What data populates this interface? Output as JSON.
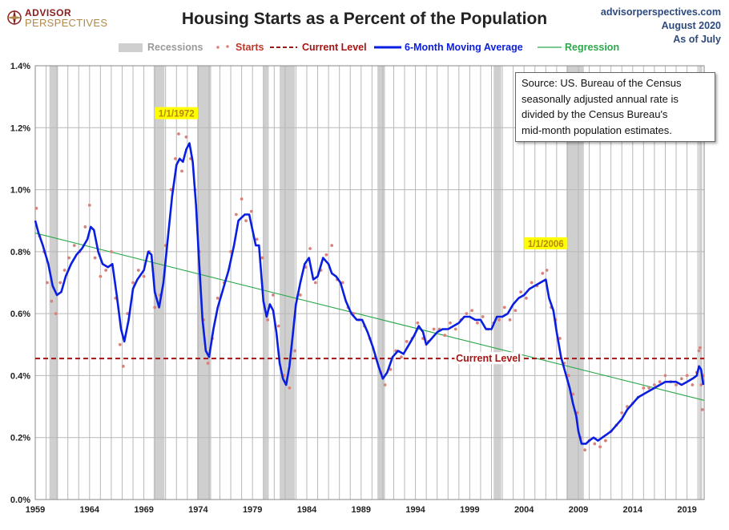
{
  "header": {
    "logo_top": "ADVISOR",
    "logo_bottom": "PERSPECTIVES",
    "title": "Housing Starts as a Percent of the Population",
    "site": "advisorperspectives.com",
    "date": "August 2020",
    "asof": "As of July"
  },
  "legend": {
    "recessions": "Recessions",
    "starts": "Starts",
    "current": "Current Level",
    "ma": "6-Month Moving Average",
    "regression": "Regression"
  },
  "source_note": [
    "Source: US. Bureau of the Census",
    "seasonally adjusted annual rate is",
    "divided by the Census Bureau's",
    "mid-month  population estimates."
  ],
  "colors": {
    "starts": "#d9827a",
    "ma": "#0a1ee0",
    "current": "#a31515",
    "regression": "#2aa84a",
    "recession": "#cfcfcf",
    "callout_bg": "#ffff00",
    "callout_text": "#b8860b"
  },
  "chart_data": {
    "type": "line",
    "title": "Housing Starts as a Percent of the Population",
    "xlim": [
      1959.0,
      2020.58
    ],
    "ylim": [
      0,
      1.4
    ],
    "y_ticks": [
      "0.0%",
      "0.2%",
      "0.4%",
      "0.6%",
      "0.8%",
      "1.0%",
      "1.2%",
      "1.4%"
    ],
    "y_tick_values": [
      0,
      0.2,
      0.4,
      0.6,
      0.8,
      1.0,
      1.2,
      1.4
    ],
    "x_ticks": [
      "1959",
      "1964",
      "1969",
      "1974",
      "1979",
      "1984",
      "1989",
      "1994",
      "1999",
      "2004",
      "2009",
      "2014",
      "2019"
    ],
    "x_tick_values": [
      1959,
      1964,
      1969,
      1974,
      1979,
      1984,
      1989,
      1994,
      1999,
      2004,
      2009,
      2014,
      2019
    ],
    "grid": "vertical-yearly, horizontal-major",
    "current_level": 0.455,
    "current_label": "Current Level",
    "regression": {
      "start": [
        1959.0,
        0.86
      ],
      "end": [
        2020.58,
        0.32
      ]
    },
    "recessions": [
      [
        1960.3,
        1961.1
      ],
      [
        1969.9,
        1970.9
      ],
      [
        1973.9,
        1975.2
      ],
      [
        1980.0,
        1980.5
      ],
      [
        1981.5,
        1982.9
      ],
      [
        1990.5,
        1991.2
      ],
      [
        2001.2,
        2001.9
      ],
      [
        2007.9,
        2009.5
      ],
      [
        2020.1,
        2020.4
      ]
    ],
    "annotations": [
      {
        "label": "1/1/1972",
        "x": 1972.0,
        "y": 1.15
      },
      {
        "label": "1/1/2006",
        "x": 2006.0,
        "y": 0.73
      }
    ],
    "series": [
      {
        "name": "6-Month Moving Average",
        "x": [
          1959.0,
          1959.3,
          1959.7,
          1960.2,
          1960.6,
          1961.0,
          1961.4,
          1961.8,
          1962.3,
          1962.8,
          1963.3,
          1963.8,
          1964.1,
          1964.4,
          1964.8,
          1965.2,
          1965.7,
          1966.1,
          1966.5,
          1966.9,
          1967.2,
          1967.6,
          1968.0,
          1968.4,
          1968.8,
          1969.0,
          1969.4,
          1969.7,
          1970.0,
          1970.4,
          1970.8,
          1971.2,
          1971.6,
          1972.0,
          1972.3,
          1972.6,
          1972.9,
          1973.2,
          1973.5,
          1973.8,
          1974.1,
          1974.4,
          1974.7,
          1975.0,
          1975.4,
          1975.8,
          1976.3,
          1976.8,
          1977.3,
          1977.7,
          1978.0,
          1978.3,
          1978.7,
          1979.0,
          1979.3,
          1979.6,
          1980.0,
          1980.3,
          1980.6,
          1980.9,
          1981.2,
          1981.5,
          1981.8,
          1982.1,
          1982.4,
          1982.7,
          1983.0,
          1983.4,
          1983.8,
          1984.2,
          1984.6,
          1985.0,
          1985.5,
          1986.0,
          1986.3,
          1986.7,
          1987.1,
          1987.6,
          1988.1,
          1988.6,
          1989.1,
          1989.6,
          1990.1,
          1990.6,
          1991.0,
          1991.4,
          1991.9,
          1992.4,
          1992.9,
          1993.4,
          1993.9,
          1994.3,
          1994.7,
          1995.0,
          1995.5,
          1996.0,
          1996.5,
          1997.0,
          1997.5,
          1998.0,
          1998.5,
          1999.0,
          1999.5,
          2000.0,
          2000.5,
          2001.0,
          2001.5,
          2002.0,
          2002.5,
          2003.0,
          2003.5,
          2004.0,
          2004.5,
          2005.0,
          2005.5,
          2006.0,
          2006.3,
          2006.7,
          2007.0,
          2007.4,
          2007.8,
          2008.2,
          2008.5,
          2008.8,
          2009.0,
          2009.3,
          2009.7,
          2010.0,
          2010.4,
          2010.8,
          2011.2,
          2011.6,
          2012.0,
          2012.5,
          2013.0,
          2013.5,
          2014.0,
          2014.5,
          2015.0,
          2015.5,
          2016.0,
          2016.5,
          2017.0,
          2017.5,
          2018.0,
          2018.5,
          2019.0,
          2019.5,
          2019.9,
          2020.1,
          2020.3,
          2020.5
        ],
        "values": [
          0.9,
          0.86,
          0.82,
          0.76,
          0.69,
          0.66,
          0.67,
          0.72,
          0.76,
          0.79,
          0.81,
          0.84,
          0.88,
          0.87,
          0.8,
          0.76,
          0.75,
          0.76,
          0.66,
          0.55,
          0.51,
          0.58,
          0.68,
          0.71,
          0.73,
          0.74,
          0.8,
          0.79,
          0.67,
          0.62,
          0.7,
          0.84,
          0.98,
          1.08,
          1.1,
          1.09,
          1.13,
          1.15,
          1.09,
          0.95,
          0.76,
          0.58,
          0.48,
          0.46,
          0.55,
          0.62,
          0.68,
          0.74,
          0.82,
          0.9,
          0.91,
          0.92,
          0.92,
          0.87,
          0.82,
          0.82,
          0.64,
          0.59,
          0.63,
          0.61,
          0.54,
          0.44,
          0.39,
          0.37,
          0.43,
          0.53,
          0.63,
          0.7,
          0.76,
          0.78,
          0.71,
          0.72,
          0.78,
          0.76,
          0.73,
          0.72,
          0.7,
          0.64,
          0.6,
          0.58,
          0.58,
          0.54,
          0.49,
          0.43,
          0.39,
          0.41,
          0.46,
          0.48,
          0.47,
          0.5,
          0.53,
          0.56,
          0.54,
          0.5,
          0.52,
          0.54,
          0.55,
          0.55,
          0.56,
          0.57,
          0.59,
          0.59,
          0.58,
          0.58,
          0.55,
          0.55,
          0.59,
          0.59,
          0.6,
          0.63,
          0.65,
          0.66,
          0.68,
          0.69,
          0.7,
          0.71,
          0.65,
          0.61,
          0.54,
          0.46,
          0.41,
          0.36,
          0.31,
          0.27,
          0.22,
          0.18,
          0.18,
          0.19,
          0.2,
          0.19,
          0.2,
          0.21,
          0.22,
          0.24,
          0.26,
          0.29,
          0.31,
          0.33,
          0.34,
          0.35,
          0.36,
          0.37,
          0.38,
          0.38,
          0.38,
          0.37,
          0.38,
          0.39,
          0.4,
          0.43,
          0.42,
          0.37
        ]
      },
      {
        "name": "Starts",
        "x": [
          1959.1,
          1959.4,
          1959.8,
          1960.1,
          1960.5,
          1960.9,
          1961.3,
          1961.7,
          1962.1,
          1962.6,
          1963.1,
          1963.6,
          1964.0,
          1964.5,
          1965.0,
          1965.5,
          1966.0,
          1966.4,
          1966.8,
          1967.1,
          1967.5,
          1968.0,
          1968.5,
          1969.0,
          1969.5,
          1970.0,
          1970.5,
          1971.0,
          1971.5,
          1971.9,
          1972.2,
          1972.5,
          1972.9,
          1973.3,
          1973.7,
          1974.1,
          1974.5,
          1974.9,
          1975.3,
          1975.8,
          1976.4,
          1977.0,
          1977.5,
          1978.0,
          1978.4,
          1978.9,
          1979.4,
          1979.9,
          1980.4,
          1980.9,
          1981.4,
          1981.9,
          1982.4,
          1982.9,
          1983.4,
          1983.9,
          1984.3,
          1984.8,
          1985.3,
          1985.8,
          1986.3,
          1986.8,
          1987.3,
          1987.8,
          1988.3,
          1988.8,
          1989.3,
          1989.8,
          1990.3,
          1990.8,
          1991.2,
          1991.7,
          1992.2,
          1992.7,
          1993.2,
          1993.7,
          1994.2,
          1994.7,
          1995.2,
          1995.7,
          1996.2,
          1996.7,
          1997.2,
          1997.7,
          1998.2,
          1998.7,
          1999.2,
          1999.7,
          2000.2,
          2000.7,
          2001.2,
          2001.7,
          2002.2,
          2002.7,
          2003.2,
          2003.7,
          2004.2,
          2004.7,
          2005.2,
          2005.7,
          2006.1,
          2006.5,
          2006.9,
          2007.3,
          2007.7,
          2008.1,
          2008.5,
          2008.9,
          2009.2,
          2009.6,
          2010.0,
          2010.5,
          2011.0,
          2011.5,
          2012.0,
          2012.5,
          2013.0,
          2013.5,
          2014.0,
          2014.5,
          2015.0,
          2015.5,
          2016.0,
          2016.5,
          2017.0,
          2017.5,
          2018.0,
          2018.5,
          2019.0,
          2019.5,
          2019.9,
          2020.1,
          2020.2,
          2020.3,
          2020.4,
          2020.5
        ],
        "values": [
          0.94,
          0.85,
          0.8,
          0.7,
          0.64,
          0.6,
          0.7,
          0.74,
          0.78,
          0.82,
          0.8,
          0.88,
          0.95,
          0.78,
          0.72,
          0.74,
          0.8,
          0.65,
          0.5,
          0.43,
          0.6,
          0.7,
          0.74,
          0.72,
          0.8,
          0.62,
          0.66,
          0.82,
          1.0,
          1.1,
          1.18,
          1.06,
          1.17,
          1.1,
          1.0,
          0.8,
          0.58,
          0.44,
          0.52,
          0.65,
          0.7,
          0.8,
          0.92,
          0.97,
          0.9,
          0.93,
          0.84,
          0.78,
          0.58,
          0.66,
          0.56,
          0.4,
          0.36,
          0.48,
          0.66,
          0.75,
          0.81,
          0.7,
          0.74,
          0.79,
          0.82,
          0.71,
          0.7,
          0.62,
          0.6,
          0.58,
          0.56,
          0.52,
          0.46,
          0.41,
          0.37,
          0.42,
          0.48,
          0.46,
          0.51,
          0.52,
          0.57,
          0.52,
          0.51,
          0.55,
          0.55,
          0.53,
          0.57,
          0.55,
          0.58,
          0.6,
          0.61,
          0.57,
          0.59,
          0.55,
          0.57,
          0.58,
          0.62,
          0.58,
          0.61,
          0.67,
          0.65,
          0.7,
          0.69,
          0.73,
          0.74,
          0.62,
          0.58,
          0.52,
          0.44,
          0.4,
          0.34,
          0.28,
          0.2,
          0.16,
          0.19,
          0.18,
          0.17,
          0.19,
          0.22,
          0.24,
          0.28,
          0.3,
          0.31,
          0.33,
          0.36,
          0.36,
          0.37,
          0.38,
          0.4,
          0.38,
          0.37,
          0.39,
          0.4,
          0.37,
          0.41,
          0.48,
          0.49,
          0.37,
          0.29,
          0.4
        ]
      }
    ]
  }
}
